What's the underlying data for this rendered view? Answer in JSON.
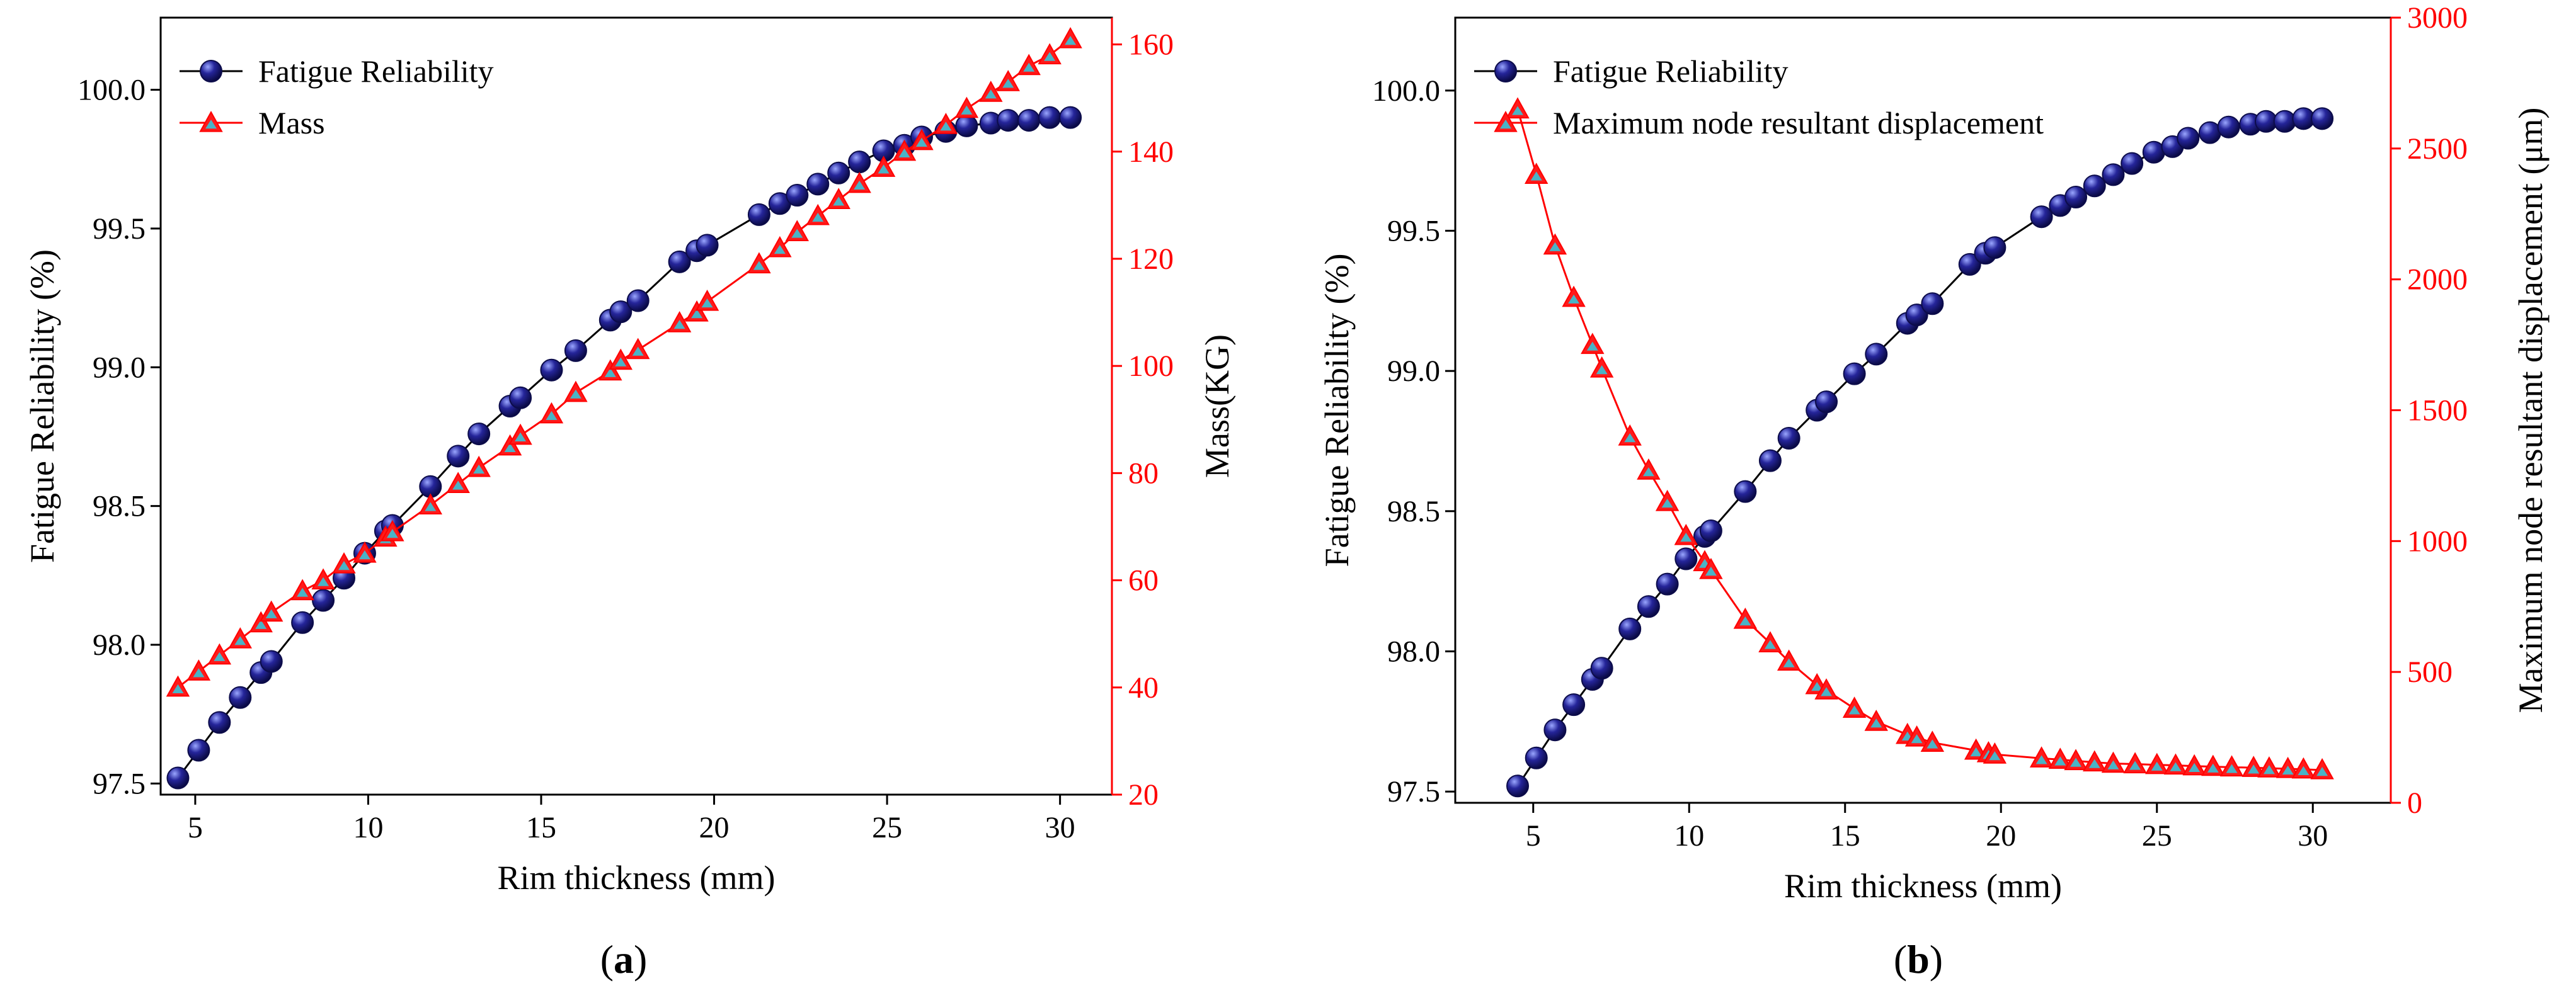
{
  "chart_data": [
    {
      "type": "line",
      "panel_label": "a",
      "xlabel": "Rim thickness (mm)",
      "ylabel_left": "Fatigue Reliability (%)",
      "ylabel_right": "Mass(KG)",
      "xlim": [
        4.0,
        31.5
      ],
      "ylim_left": [
        97.46,
        100.26
      ],
      "ylim_right": [
        20,
        165
      ],
      "x_ticks": [
        5,
        10,
        15,
        20,
        25,
        30
      ],
      "y_left_ticks": [
        97.5,
        98.0,
        98.5,
        99.0,
        99.5,
        100.0
      ],
      "y_right_ticks": [
        20,
        40,
        60,
        80,
        100,
        120,
        140,
        160
      ],
      "legend": [
        "Fatigue Reliability",
        "Mass"
      ],
      "legend_position": "top-left",
      "series": [
        {
          "name": "Fatigue Reliability",
          "axis": "left",
          "color": "#1b1b7a",
          "marker": "circle",
          "x": [
            4.5,
            5.1,
            5.7,
            6.3,
            6.9,
            7.2,
            8.1,
            8.7,
            9.3,
            9.9,
            10.5,
            10.7,
            11.8,
            12.6,
            13.2,
            14.1,
            14.4,
            15.3,
            16.0,
            17.0,
            17.3,
            17.8,
            19.0,
            19.5,
            19.8,
            21.3,
            21.9,
            22.4,
            23.0,
            23.6,
            24.2,
            24.9,
            25.5,
            26.0,
            26.7,
            27.3,
            28.0,
            28.5,
            29.1,
            29.7,
            30.3
          ],
          "values": [
            97.52,
            97.62,
            97.72,
            97.81,
            97.9,
            97.94,
            98.08,
            98.16,
            98.24,
            98.33,
            98.41,
            98.43,
            98.57,
            98.68,
            98.76,
            98.86,
            98.89,
            98.99,
            99.06,
            99.17,
            99.2,
            99.24,
            99.38,
            99.42,
            99.44,
            99.55,
            99.59,
            99.62,
            99.66,
            99.7,
            99.74,
            99.78,
            99.8,
            99.83,
            99.85,
            99.87,
            99.88,
            99.89,
            99.89,
            99.9,
            99.9
          ]
        },
        {
          "name": "Mass",
          "axis": "right",
          "color": "#ff0000",
          "marker": "triangle",
          "x": [
            4.5,
            5.1,
            5.7,
            6.3,
            6.9,
            7.2,
            8.1,
            8.7,
            9.3,
            9.9,
            10.5,
            10.7,
            11.8,
            12.6,
            13.2,
            14.1,
            14.4,
            15.3,
            16.0,
            17.0,
            17.3,
            17.8,
            19.0,
            19.5,
            19.8,
            21.3,
            21.9,
            22.4,
            23.0,
            23.6,
            24.2,
            24.9,
            25.5,
            26.0,
            26.7,
            27.3,
            28.0,
            28.5,
            29.1,
            29.7,
            30.3
          ],
          "values": [
            40,
            43,
            46,
            49,
            52,
            54,
            58,
            60,
            63,
            65,
            68,
            69,
            74,
            78,
            81,
            85,
            87,
            91,
            95,
            99,
            101,
            103,
            108,
            110,
            112,
            119,
            122,
            125,
            128,
            131,
            134,
            137,
            140,
            142,
            145,
            148,
            151,
            153,
            156,
            158,
            161
          ]
        }
      ]
    },
    {
      "type": "line",
      "panel_label": "b",
      "xlabel": "Rim thickness (mm)",
      "ylabel_left": "Fatigue Reliability (%)",
      "ylabel_right": "Maximum node resultant displacement (μm)",
      "xlim": [
        2.5,
        32.5
      ],
      "ylim_left": [
        97.46,
        100.26
      ],
      "ylim_right": [
        0,
        3000
      ],
      "x_ticks": [
        5,
        10,
        15,
        20,
        25,
        30
      ],
      "y_left_ticks": [
        97.5,
        98.0,
        98.5,
        99.0,
        99.5,
        100.0
      ],
      "y_right_ticks": [
        0,
        500,
        1000,
        1500,
        2000,
        2500,
        3000
      ],
      "legend": [
        "Fatigue Reliability",
        "Maximum node resultant displacement"
      ],
      "legend_position": "top-left",
      "series": [
        {
          "name": "Fatigue Reliability",
          "axis": "left",
          "color": "#1b1b7a",
          "marker": "circle",
          "x": [
            4.5,
            5.1,
            5.7,
            6.3,
            6.9,
            7.2,
            8.1,
            8.7,
            9.3,
            9.9,
            10.5,
            10.7,
            11.8,
            12.6,
            13.2,
            14.1,
            14.4,
            15.3,
            16.0,
            17.0,
            17.3,
            17.8,
            19.0,
            19.5,
            19.8,
            21.3,
            21.9,
            22.4,
            23.0,
            23.6,
            24.2,
            24.9,
            25.5,
            26.0,
            26.7,
            27.3,
            28.0,
            28.5,
            29.1,
            29.7,
            30.3
          ],
          "values": [
            97.52,
            97.62,
            97.72,
            97.81,
            97.9,
            97.94,
            98.08,
            98.16,
            98.24,
            98.33,
            98.41,
            98.43,
            98.57,
            98.68,
            98.76,
            98.86,
            98.89,
            98.99,
            99.06,
            99.17,
            99.2,
            99.24,
            99.38,
            99.42,
            99.44,
            99.55,
            99.59,
            99.62,
            99.66,
            99.7,
            99.74,
            99.78,
            99.8,
            99.83,
            99.85,
            99.87,
            99.88,
            99.89,
            99.89,
            99.9,
            99.9
          ]
        },
        {
          "name": "Maximum node resultant displacement",
          "axis": "right",
          "color": "#ff0000",
          "marker": "triangle",
          "x": [
            4.5,
            5.1,
            5.7,
            6.3,
            6.9,
            7.2,
            8.1,
            8.7,
            9.3,
            9.9,
            10.5,
            10.7,
            11.8,
            12.6,
            13.2,
            14.1,
            14.4,
            15.3,
            16.0,
            17.0,
            17.3,
            17.8,
            19.2,
            19.6,
            19.8,
            21.3,
            21.9,
            22.4,
            23.0,
            23.6,
            24.3,
            25.0,
            25.6,
            26.2,
            26.8,
            27.4,
            28.1,
            28.6,
            29.2,
            29.7,
            30.3
          ],
          "values": [
            2650,
            2400,
            2130,
            1930,
            1750,
            1660,
            1400,
            1270,
            1150,
            1020,
            920,
            890,
            700,
            610,
            540,
            450,
            430,
            360,
            310,
            260,
            250,
            230,
            200,
            190,
            185,
            170,
            165,
            160,
            155,
            150,
            148,
            145,
            143,
            140,
            138,
            136,
            134,
            132,
            130,
            128,
            125
          ]
        }
      ]
    }
  ]
}
